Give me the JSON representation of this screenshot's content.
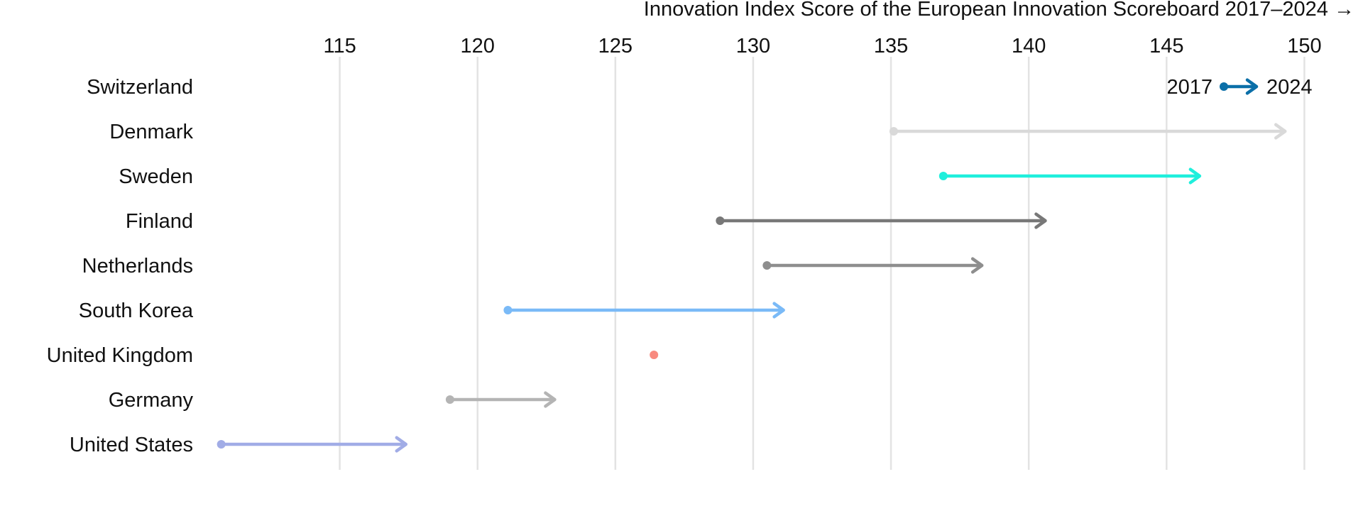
{
  "chart_data": {
    "type": "arrow-dot",
    "x_axis_title": "Innovation Index Score of the European Innovation Scoreboard 2017–2024 →",
    "x_ticks": [
      115,
      120,
      125,
      130,
      135,
      140,
      145,
      150
    ],
    "xlim": [
      110.4,
      151.2
    ],
    "grid": "vertical",
    "legend": {
      "placement": "top-right",
      "start_label": "2017",
      "end_label": "2024",
      "color": "#0b6fa8"
    },
    "series": [
      {
        "country": "Switzerland",
        "start": null,
        "end": null,
        "color": "#ffffff"
      },
      {
        "country": "Denmark",
        "start": 135.1,
        "end": 149.3,
        "color": "#d9d9d9"
      },
      {
        "country": "Sweden",
        "start": 136.9,
        "end": 146.2,
        "color": "#1fefdc"
      },
      {
        "country": "Finland",
        "start": 128.8,
        "end": 140.6,
        "color": "#787878"
      },
      {
        "country": "Netherlands",
        "start": 130.5,
        "end": 138.3,
        "color": "#8e8e8e"
      },
      {
        "country": "South Korea",
        "start": 121.1,
        "end": 131.1,
        "color": "#7abaf7"
      },
      {
        "country": "United Kingdom",
        "start": 126.4,
        "end": 126.4,
        "color": "#f88a7f"
      },
      {
        "country": "Germany",
        "start": 119.0,
        "end": 122.8,
        "color": "#b4b4b4"
      },
      {
        "country": "United States",
        "start": 110.7,
        "end": 117.4,
        "color": "#a1ace6"
      }
    ]
  }
}
